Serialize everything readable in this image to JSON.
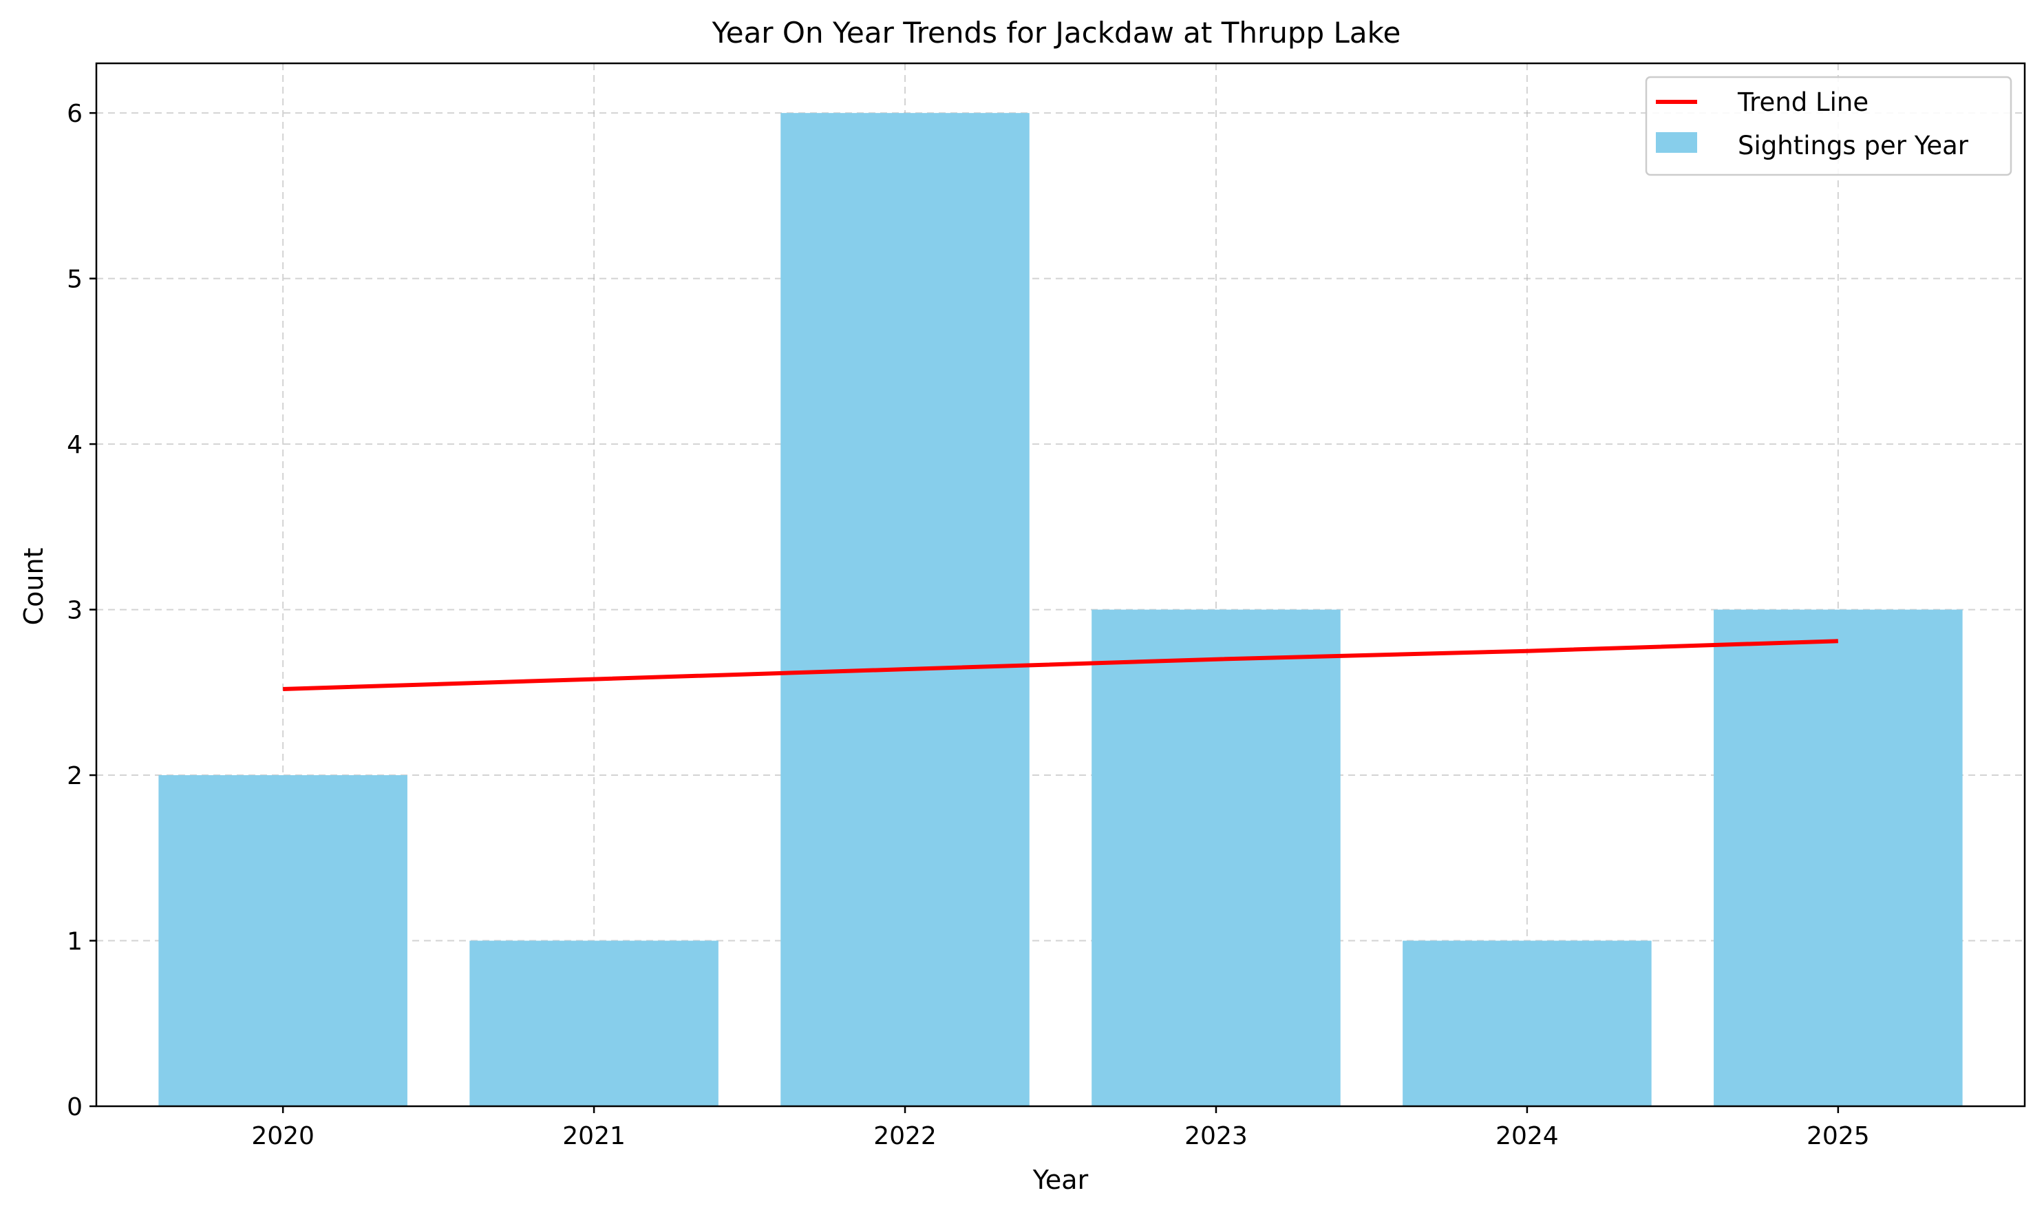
{
  "chart_data": {
    "type": "bar",
    "title": "Year On Year Trends for Jackdaw at Thrupp Lake",
    "xlabel": "Year",
    "ylabel": "Count",
    "categories": [
      "2020",
      "2021",
      "2022",
      "2023",
      "2024",
      "2025"
    ],
    "series": [
      {
        "name": "Sightings per Year",
        "type": "bar",
        "values": [
          2,
          1,
          6,
          3,
          1,
          3
        ],
        "color": "#87ceeb"
      },
      {
        "name": "Trend Line",
        "type": "line",
        "values": [
          2.52,
          2.58,
          2.64,
          2.7,
          2.75,
          2.81
        ],
        "color": "#ff0000"
      }
    ],
    "ylim": [
      0,
      6.3
    ],
    "yticks": [
      0,
      1,
      2,
      3,
      4,
      5,
      6
    ],
    "grid": true,
    "legend": {
      "position": "top-right",
      "entries": [
        "Trend Line",
        "Sightings per Year"
      ]
    }
  }
}
